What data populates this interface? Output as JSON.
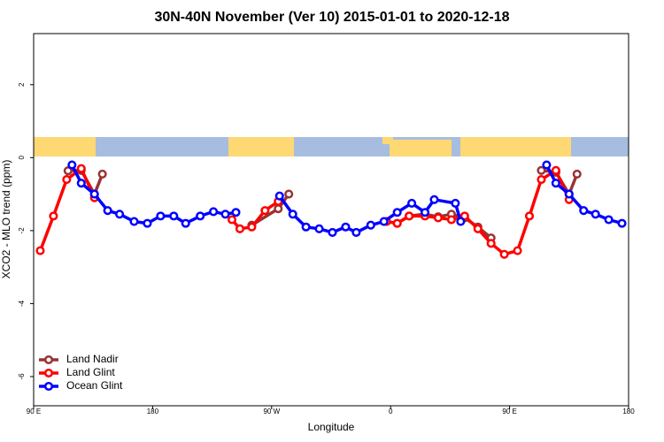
{
  "chart_data": {
    "type": "line",
    "title": "30N-40N November (Ver 10)   2015-01-01 to 2020-12-18",
    "x_label": "Longitude",
    "y_label": "XCO2 - MLO trend (ppm)",
    "xlim": [
      90,
      540
    ],
    "ylim": [
      -6.8,
      3.4
    ],
    "xticks": [
      {
        "value": 90,
        "label": "90 E"
      },
      180,
      {
        "value": 270,
        "label": "90 W"
      },
      {
        "value": 360,
        "label": "0"
      },
      {
        "value": 450,
        "label": "90 E"
      },
      {
        "value": 540,
        "label": "180"
      }
    ],
    "yticks": [
      -6,
      -4,
      -2,
      0,
      2
    ],
    "legend": "bottom-left",
    "series": [
      {
        "name": "Land Nadir",
        "color": "#993333",
        "x": [
          116,
          126,
          136,
          142,
          null,
          255,
          275,
          283,
          null,
          365,
          374,
          386,
          396,
          406,
          416,
          426,
          436,
          null,
          474,
          485,
          495,
          501
        ],
        "values": [
          -0.36,
          -0.35,
          -1.0,
          -0.45,
          null,
          -1.85,
          -1.4,
          -1.0,
          null,
          -1.8,
          -1.6,
          -1.55,
          -1.62,
          -1.55,
          -1.65,
          -1.9,
          -2.2,
          null,
          -0.35,
          -0.4,
          -1.0,
          -0.45
        ]
      },
      {
        "name": "Land Glint",
        "color": "#ff0000",
        "x": [
          95,
          105,
          115,
          126,
          136,
          null,
          240,
          246,
          255,
          265,
          275,
          null,
          357,
          365,
          374,
          386,
          396,
          406,
          416,
          426,
          436,
          446,
          456,
          465,
          474,
          485,
          495
        ],
        "values": [
          -2.55,
          -1.6,
          -0.6,
          -0.3,
          -1.1,
          null,
          -1.7,
          -1.95,
          -1.9,
          -1.45,
          -1.2,
          null,
          -1.75,
          -1.8,
          -1.6,
          -1.6,
          -1.65,
          -1.7,
          -1.6,
          -1.95,
          -2.35,
          -2.65,
          -2.55,
          -1.6,
          -0.6,
          -0.35,
          -1.15
        ]
      },
      {
        "name": "Ocean Glint",
        "color": "#0000ff",
        "x": [
          119,
          126,
          136,
          146,
          155,
          166,
          176,
          186,
          196,
          205,
          216,
          226,
          235,
          243,
          null,
          276,
          286,
          296,
          306,
          316,
          326,
          334,
          345,
          355,
          365,
          376,
          386,
          393,
          409,
          413,
          null,
          478,
          485,
          495,
          506,
          515,
          525,
          535
        ],
        "values": [
          -0.2,
          -0.7,
          -1.0,
          -1.45,
          -1.55,
          -1.75,
          -1.8,
          -1.6,
          -1.6,
          -1.8,
          -1.6,
          -1.48,
          -1.55,
          -1.5,
          null,
          -1.05,
          -1.55,
          -1.9,
          -1.95,
          -2.05,
          -1.9,
          -2.05,
          -1.85,
          -1.75,
          -1.5,
          -1.25,
          -1.5,
          -1.15,
          -1.25,
          -1.75,
          null,
          -0.2,
          -0.7,
          -1.0,
          -1.45,
          -1.55,
          -1.7,
          -1.8
        ]
      }
    ]
  }
}
